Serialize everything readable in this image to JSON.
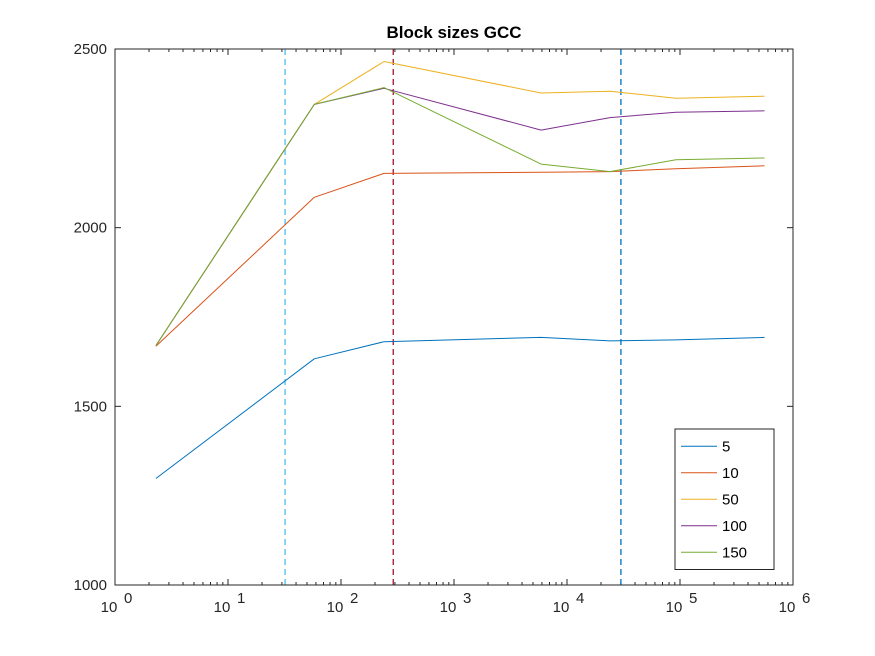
{
  "chart_data": {
    "type": "line",
    "title": "Block sizes GCC",
    "xlabel": "",
    "ylabel": "",
    "x_scale": "log",
    "xlim": [
      1,
      1000000
    ],
    "ylim": [
      1000,
      2500
    ],
    "x_ticks": [
      {
        "value": 1,
        "base": "10",
        "exp": "0"
      },
      {
        "value": 10,
        "base": "10",
        "exp": "1"
      },
      {
        "value": 100,
        "base": "10",
        "exp": "2"
      },
      {
        "value": 1000,
        "base": "10",
        "exp": "3"
      },
      {
        "value": 10000,
        "base": "10",
        "exp": "4"
      },
      {
        "value": 100000,
        "base": "10",
        "exp": "5"
      },
      {
        "value": 1000000,
        "base": "10",
        "exp": "6"
      }
    ],
    "y_ticks": [
      {
        "value": 1000,
        "label": "1000"
      },
      {
        "value": 1500,
        "label": "1500"
      },
      {
        "value": 2000,
        "label": "2000"
      },
      {
        "value": 2500,
        "label": "2500"
      }
    ],
    "grid": false,
    "legend_position": "bottom-right",
    "x": [
      2.3,
      58,
      240,
      5900,
      24000,
      92000,
      560000
    ],
    "series": [
      {
        "name": "5",
        "color": "#0072BD",
        "values": [
          1298,
          1633,
          1681,
          1693,
          1683,
          1686,
          1693
        ]
      },
      {
        "name": "10",
        "color": "#D95319",
        "values": [
          1668,
          2085,
          2152,
          2155,
          2157,
          2165,
          2173
        ]
      },
      {
        "name": "50",
        "color": "#EDB120",
        "values": [
          1670,
          2345,
          2465,
          2377,
          2382,
          2362,
          2368
        ]
      },
      {
        "name": "100",
        "color": "#7E2F8E",
        "values": [
          1670,
          2345,
          2390,
          2273,
          2308,
          2323,
          2327
        ]
      },
      {
        "name": "150",
        "color": "#77AC30",
        "values": [
          1670,
          2345,
          2392,
          2178,
          2157,
          2190,
          2195
        ]
      }
    ],
    "vertical_lines": [
      {
        "x": 32,
        "color": "#4DBEEE"
      },
      {
        "x": 290,
        "color": "#A2142F"
      },
      {
        "x": 30000,
        "color": "#0072BD"
      }
    ]
  }
}
